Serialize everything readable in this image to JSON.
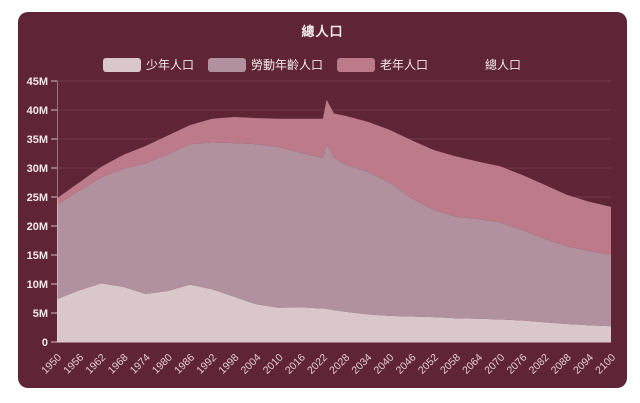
{
  "card": {
    "title": "總人口",
    "background": "#5f2536"
  },
  "legend": {
    "items": [
      {
        "label": "少年人口",
        "color": "#d9c7cc"
      },
      {
        "label": "勞動年齡人口",
        "color": "#b2919e"
      },
      {
        "label": "老年人口",
        "color": "#bc7a8b"
      },
      {
        "label": "總人口",
        "color": "#5f2536"
      }
    ]
  },
  "chart_data": {
    "type": "area",
    "stacked": true,
    "title": "總人口",
    "xlabel": "",
    "ylabel": "",
    "xlim": [
      1950,
      2100
    ],
    "ylim": [
      0,
      45
    ],
    "grid": true,
    "legend_position": "top",
    "x": [
      1950,
      1956,
      1962,
      1968,
      1974,
      1980,
      1986,
      1992,
      1998,
      2004,
      2010,
      2016,
      2021,
      2022,
      2023,
      2025,
      2028,
      2034,
      2040,
      2046,
      2052,
      2058,
      2064,
      2070,
      2076,
      2082,
      2088,
      2094,
      2100
    ],
    "series": [
      {
        "name": "少年人口",
        "color": "#d9c7cc",
        "values": [
          7.4,
          8.9,
          10.1,
          9.5,
          8.3,
          8.8,
          9.9,
          9.1,
          7.8,
          6.5,
          5.9,
          6.0,
          5.8,
          5.8,
          5.7,
          5.5,
          5.2,
          4.8,
          4.5,
          4.4,
          4.3,
          4.1,
          4.0,
          3.9,
          3.7,
          3.4,
          3.1,
          2.9,
          2.7
        ]
      },
      {
        "name": "勞動年齡人口",
        "color": "#b2919e",
        "values": [
          16.2,
          17.2,
          18.3,
          20.4,
          22.5,
          23.6,
          24.2,
          25.3,
          26.5,
          27.6,
          27.7,
          26.6,
          26.1,
          26.0,
          28.4,
          26.3,
          25.4,
          24.6,
          23.0,
          20.4,
          18.5,
          17.5,
          17.2,
          16.7,
          15.6,
          14.4,
          13.4,
          12.8,
          12.3
        ]
      },
      {
        "name": "老年人口",
        "color": "#bc7a8b",
        "values": [
          1.2,
          1.4,
          1.8,
          2.4,
          3.0,
          3.2,
          3.3,
          4.1,
          4.5,
          4.5,
          4.9,
          5.9,
          6.6,
          6.7,
          7.7,
          7.6,
          8.4,
          8.6,
          9.1,
          10.0,
          10.3,
          10.4,
          9.9,
          9.7,
          9.5,
          9.3,
          8.9,
          8.5,
          8.3
        ]
      }
    ],
    "x_tick_labels": [
      "1950",
      "1956",
      "1962",
      "1968",
      "1974",
      "1980",
      "1986",
      "1992",
      "1998",
      "2004",
      "2010",
      "2016",
      "2022",
      "2028",
      "2034",
      "2040",
      "2046",
      "2052",
      "2058",
      "2064",
      "2070",
      "2076",
      "2082",
      "2088",
      "2094",
      "2100"
    ],
    "y_ticks": [
      {
        "label": "45M",
        "value": 45
      },
      {
        "label": "40M",
        "value": 40
      },
      {
        "label": "35M",
        "value": 35
      },
      {
        "label": "30M",
        "value": 30
      },
      {
        "label": "25M",
        "value": 25
      },
      {
        "label": "20M",
        "value": 20
      },
      {
        "label": "15M",
        "value": 15
      },
      {
        "label": "10M",
        "value": 10
      },
      {
        "label": "5M",
        "value": 5
      },
      {
        "label": "0",
        "value": 0
      }
    ]
  }
}
